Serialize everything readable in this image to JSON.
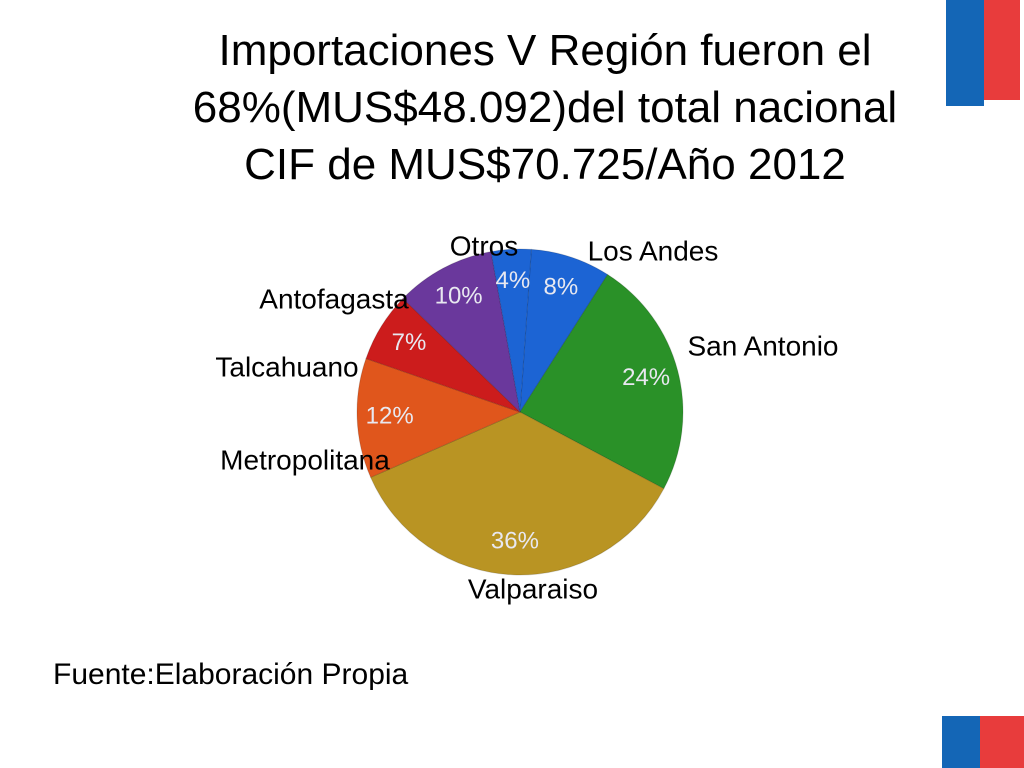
{
  "chart_data": {
    "type": "pie",
    "title": "Importaciones V Región fueron el\n68%(MUS$48.092)del total nacional\nCIF de MUS$70.725/Año 2012",
    "categories": [
      "Los Andes",
      "San Antonio",
      "Valparaiso",
      "Metropolitana",
      "Talcahuano",
      "Antofagasta",
      "Otros"
    ],
    "values": [
      8,
      24,
      36,
      12,
      7,
      10,
      4
    ],
    "value_labels": [
      "8%",
      "24%",
      "36%",
      "12%",
      "7%",
      "10%",
      "4%"
    ],
    "colors": [
      "#1c64d4",
      "#2a9128",
      "#b99423",
      "#e0561c",
      "#cc1c1c",
      "#6a389c",
      "#1c64d4"
    ],
    "source": "Fuente:Elaboración Propia"
  }
}
